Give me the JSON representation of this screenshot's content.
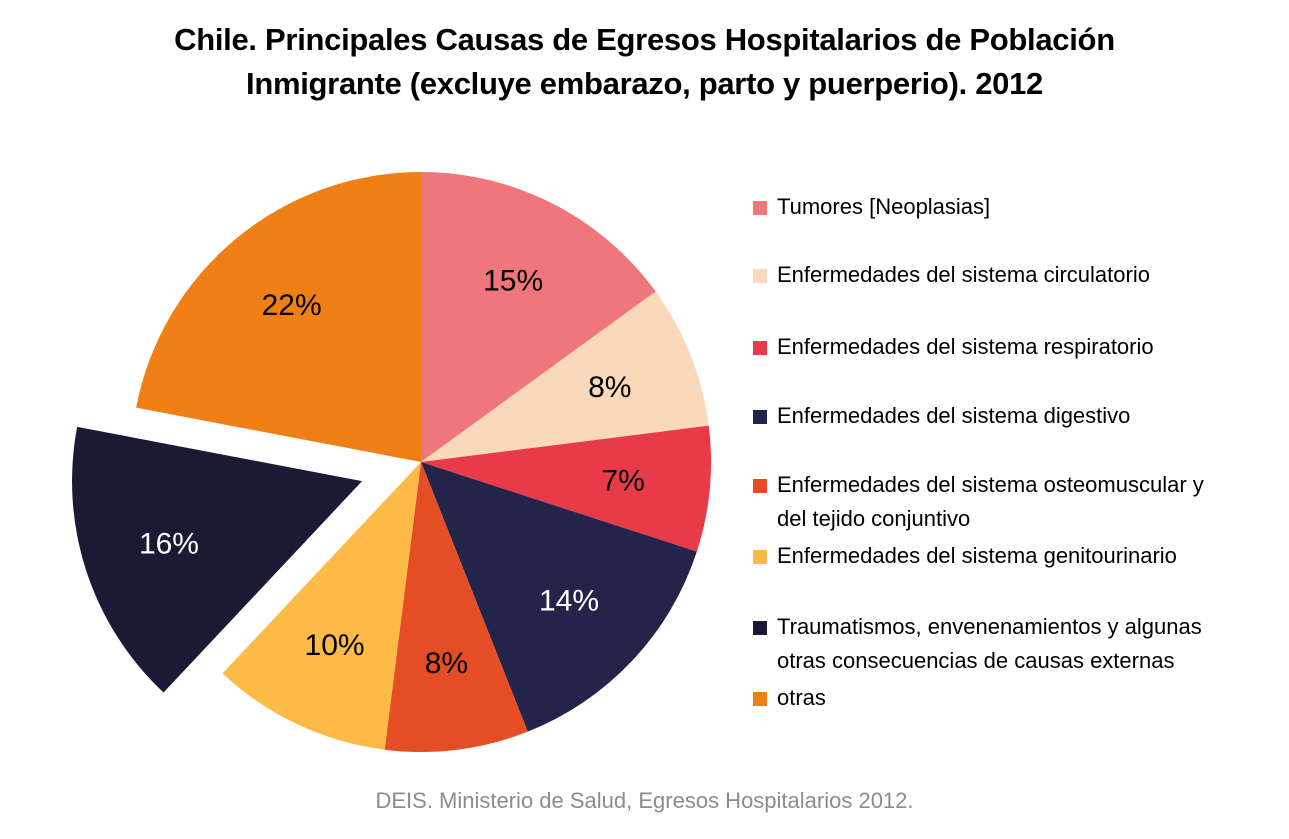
{
  "chart_data": {
    "type": "pie",
    "title_lines": [
      "Chile. Principales Causas de Egresos Hospitalarios de Población",
      "Inmigrante (excluye embarazo, parto y puerperio). 2012"
    ],
    "legend_placement": "right",
    "slices": [
      {
        "label": "Tumores [Neoplasias]",
        "value": 15,
        "value_label": "15%",
        "color": "#EF767A",
        "label_color": "#000000",
        "exploded": false
      },
      {
        "label": "Enfermedades del sistema circulatorio",
        "value": 8,
        "value_label": "8%",
        "color": "#FAD8BA",
        "label_color": "#000000",
        "exploded": false
      },
      {
        "label": "Enfermedades del sistema respiratorio",
        "value": 7,
        "value_label": "7%",
        "color": "#E83A49",
        "label_color": "#000000",
        "exploded": false
      },
      {
        "label": "Enfermedades del sistema digestivo",
        "value": 14,
        "value_label": "14%",
        "color": "#23244A",
        "label_color": "#FFFFFF",
        "exploded": false
      },
      {
        "label": "Enfermedades del sistema osteomuscular y del tejido conjuntivo",
        "value": 8,
        "value_label": "8%",
        "color": "#E54E24",
        "label_color": "#000000",
        "exploded": false
      },
      {
        "label": "Enfermedades del sistema genitourinario",
        "value": 10,
        "value_label": "10%",
        "color": "#FDBA47",
        "label_color": "#000000",
        "exploded": false
      },
      {
        "label": "Traumatismos, envenenamientos y algunas otras consecuencias de causas externas",
        "value": 16,
        "value_label": "16%",
        "color": "#1B1A35",
        "label_color": "#FFFFFF",
        "exploded": true
      },
      {
        "label": "otras",
        "value": 22,
        "value_label": "22%",
        "color": "#F07F16",
        "label_color": "#000000",
        "exploded": false
      }
    ]
  },
  "legend": {
    "items": [
      {
        "lines": [
          "Tumores [Neoplasias]"
        ]
      },
      {
        "lines": [
          "Enfermedades del sistema circulatorio"
        ]
      },
      {
        "lines": [
          "Enfermedades del sistema respiratorio"
        ]
      },
      {
        "lines": [
          "Enfermedades del sistema digestivo"
        ]
      },
      {
        "lines": [
          "Enfermedades del sistema osteomuscular y",
          "del tejido conjuntivo"
        ]
      },
      {
        "lines": [
          "Enfermedades del sistema genitourinario"
        ]
      },
      {
        "lines": [
          "Traumatismos, envenenamientos y algunas",
          "otras consecuencias de causas externas"
        ]
      },
      {
        "lines": [
          "otras"
        ]
      }
    ]
  },
  "source": "DEIS. Ministerio de Salud, Egresos Hospitalarios 2012."
}
